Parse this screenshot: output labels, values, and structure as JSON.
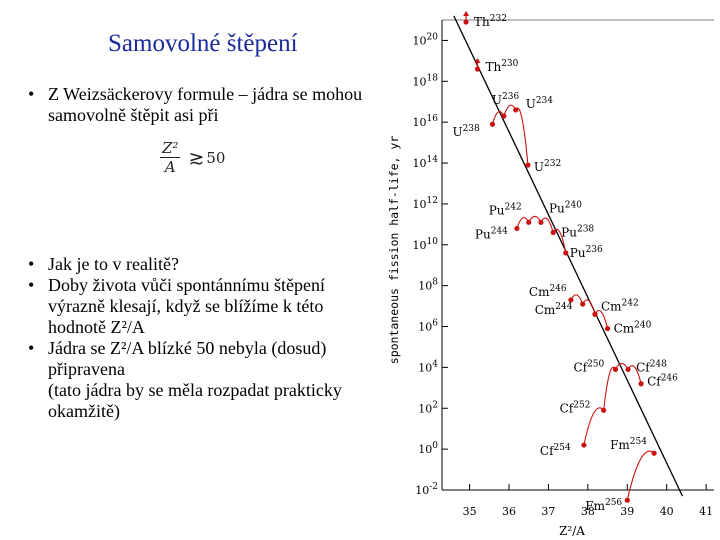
{
  "slide": {
    "title": "Samovolné štěpení",
    "bullets_top": [
      "Z Weizsäckerovy formule – jádra se mohou samovolně štěpit asi při"
    ],
    "formula": {
      "numerator": "Z²",
      "denominator": "A",
      "relation": "≳",
      "value": "50"
    },
    "bullets_bottom": [
      "Jak je to v realitě?",
      "Doby života vůči spontánnímu štěpení výrazně klesají, když se blížíme k této hodnotě Z²/A",
      "Jádra se Z²/A blízké 50 nebyla (dosud) připravena\n(tato jádra by se měla rozpadat prakticky okamžitě)"
    ]
  },
  "chart_data": {
    "type": "scatter",
    "ylabel": "spontaneous fission half-life, yr",
    "xlabel": "Z²/A",
    "y_scale": "log",
    "xlim": [
      34.3,
      41.2
    ],
    "ylim": [
      -2,
      21
    ],
    "xticks": [
      35,
      36,
      37,
      38,
      39,
      40,
      41
    ],
    "yticks": [
      {
        "exp": 20,
        "label": "10^20"
      },
      {
        "exp": 18,
        "label": "10^18"
      },
      {
        "exp": 16,
        "label": "10^16"
      },
      {
        "exp": 14,
        "label": "10^14"
      },
      {
        "exp": 12,
        "label": "10^12"
      },
      {
        "exp": 10,
        "label": "10^10"
      },
      {
        "exp": 8,
        "label": "10^8"
      },
      {
        "exp": 6,
        "label": "10^6"
      },
      {
        "exp": 4,
        "label": "10^4"
      },
      {
        "exp": 2,
        "label": "10^2"
      },
      {
        "exp": 0,
        "label": "10^0"
      },
      {
        "exp": -2,
        "label": "10^-2"
      }
    ],
    "trend_line": {
      "x": [
        34.6,
        40.4
      ],
      "log_y": [
        21.2,
        -2.3
      ]
    },
    "point_color": "#cc1111",
    "points": [
      {
        "element": "Th",
        "mass": "232",
        "x": 34.91,
        "log_y": 20.9,
        "upper_limit": true
      },
      {
        "element": "Th",
        "mass": "230",
        "x": 35.2,
        "log_y": 18.6,
        "upper_limit": true
      },
      {
        "element": "U",
        "mass": "236",
        "x": 35.87,
        "log_y": 16.3
      },
      {
        "element": "U",
        "mass": "234",
        "x": 36.17,
        "log_y": 16.6
      },
      {
        "element": "U",
        "mass": "238",
        "x": 35.58,
        "log_y": 15.9
      },
      {
        "element": "U",
        "mass": "232",
        "x": 36.48,
        "log_y": 13.9
      },
      {
        "element": "Pu",
        "mass": "242",
        "x": 36.5,
        "log_y": 11.1
      },
      {
        "element": "Pu",
        "mass": "240",
        "x": 36.81,
        "log_y": 11.1
      },
      {
        "element": "Pu",
        "mass": "238",
        "x": 37.12,
        "log_y": 10.6
      },
      {
        "element": "Pu",
        "mass": "244",
        "x": 36.2,
        "log_y": 10.8
      },
      {
        "element": "Pu",
        "mass": "236",
        "x": 37.44,
        "log_y": 9.6
      },
      {
        "element": "Cm",
        "mass": "246",
        "x": 37.57,
        "log_y": 7.3
      },
      {
        "element": "Cm",
        "mass": "244",
        "x": 37.87,
        "log_y": 7.1
      },
      {
        "element": "Cm",
        "mass": "242",
        "x": 38.18,
        "log_y": 6.6
      },
      {
        "element": "Cm",
        "mass": "240",
        "x": 38.5,
        "log_y": 5.9
      },
      {
        "element": "Cf",
        "mass": "250",
        "x": 38.7,
        "log_y": 3.9
      },
      {
        "element": "Cf",
        "mass": "248",
        "x": 39.02,
        "log_y": 3.9
      },
      {
        "element": "Cf",
        "mass": "246",
        "x": 39.35,
        "log_y": 3.2
      },
      {
        "element": "Cf",
        "mass": "252",
        "x": 38.4,
        "log_y": 1.9
      },
      {
        "element": "Fm",
        "mass": "254",
        "x": 39.68,
        "log_y": -0.2
      },
      {
        "element": "Cf",
        "mass": "254",
        "x": 37.9,
        "log_y": 0.2
      },
      {
        "element": "Fm",
        "mass": "256",
        "x": 39.0,
        "log_y": -2.5
      }
    ]
  }
}
